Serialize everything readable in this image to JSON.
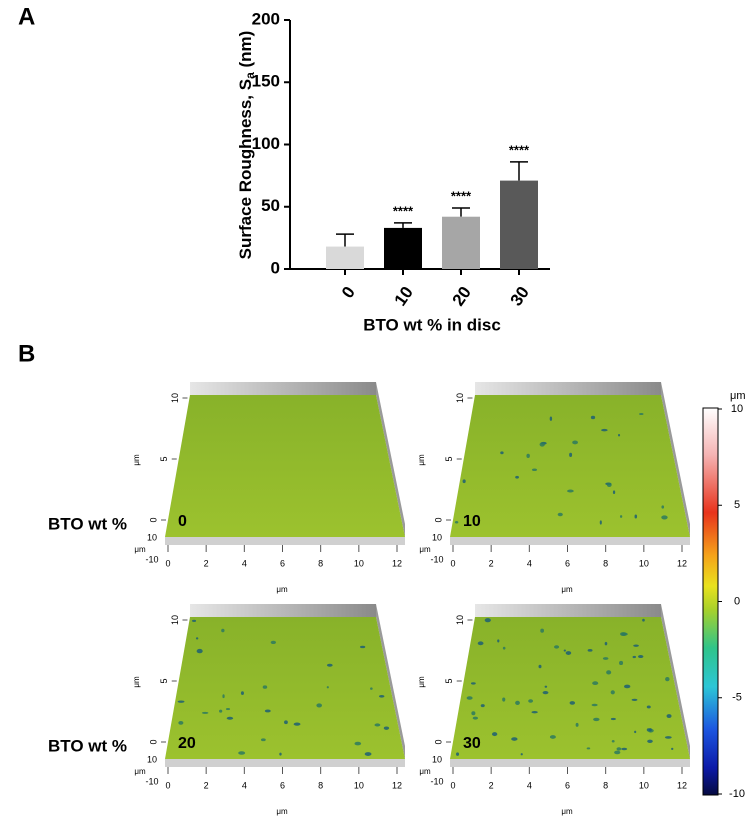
{
  "panel_labels": [
    "A",
    "B"
  ],
  "chart_data": {
    "type": "bar",
    "categories": [
      "0",
      "10",
      "20",
      "30"
    ],
    "values": [
      18,
      33,
      42,
      71
    ],
    "errors": [
      10,
      4,
      7,
      15
    ],
    "colors": [
      "#d9d9d9",
      "#000000",
      "#a6a6a6",
      "#595959"
    ],
    "significance": [
      null,
      "****",
      "****",
      "****"
    ],
    "ylabel": [
      "Surface Roughness, S",
      "a",
      " (nm)"
    ],
    "xlabel": "BTO wt % in disc",
    "ylim": [
      0,
      200
    ],
    "yticks": [
      0,
      50,
      100,
      150,
      200
    ]
  },
  "surfaces": {
    "label": "BTO wt %",
    "panels": [
      {
        "label": "0"
      },
      {
        "label": "10"
      },
      {
        "label": "20"
      },
      {
        "label": "30"
      }
    ],
    "axis_unit": "μm",
    "xlim": [
      0,
      12
    ],
    "xticks": [
      0,
      2,
      4,
      6,
      8,
      10,
      12
    ],
    "ylim": [
      0,
      10
    ],
    "yticks": [
      0,
      5,
      10
    ],
    "zticks": [
      10,
      -10
    ]
  },
  "colorbar": {
    "unit": "μm",
    "lim": [
      -10,
      10
    ],
    "ticks": [
      10,
      5,
      0,
      -5,
      -10
    ]
  }
}
